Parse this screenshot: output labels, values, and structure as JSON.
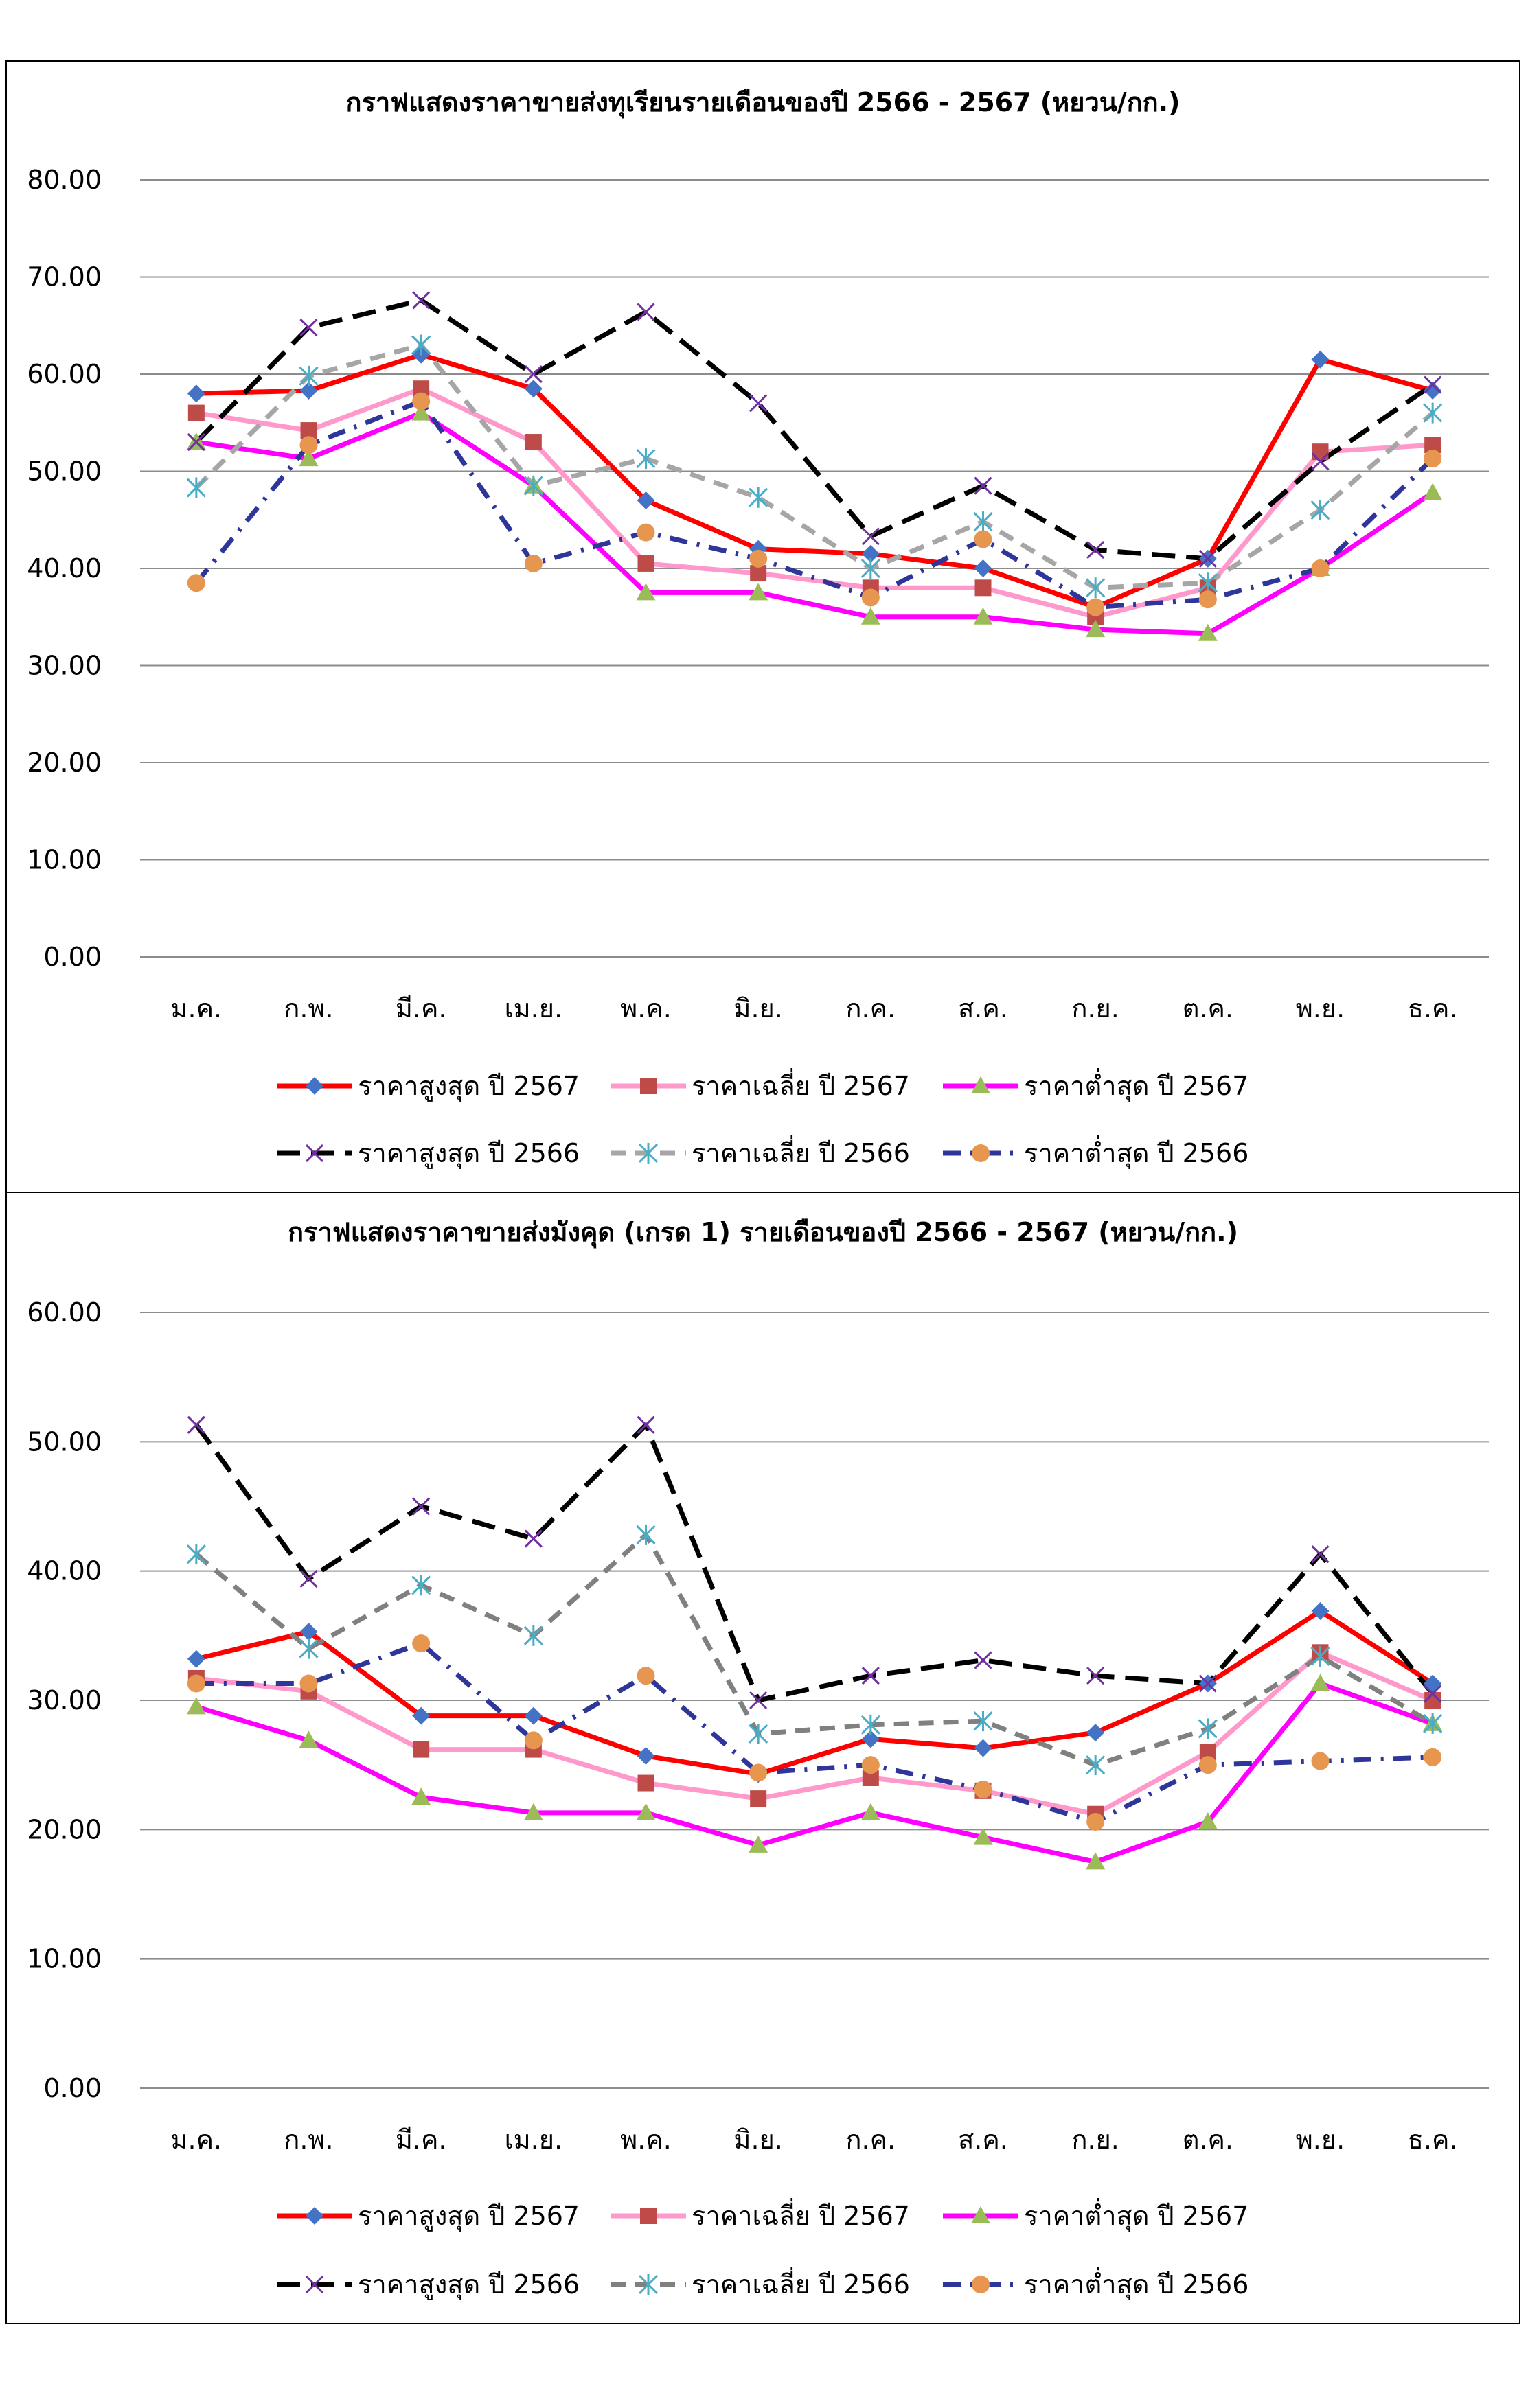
{
  "charts": [
    {
      "title": "กราฟแสดงราคาขายส่งทุเรียนรายเดือนของปี 2566 - 2567 (หยวน/กก.)",
      "type": "line",
      "categories": [
        "ม.ค.",
        "ก.พ.",
        "มี.ค.",
        "เม.ย.",
        "พ.ค.",
        "มิ.ย.",
        "ก.ค.",
        "ส.ค.",
        "ก.ย.",
        "ต.ค.",
        "พ.ย.",
        "ธ.ค."
      ],
      "y_ticks": [
        "0.00",
        "10.00",
        "20.00",
        "30.00",
        "40.00",
        "50.00",
        "60.00",
        "70.00",
        "80.00"
      ],
      "ylim": [
        0,
        80
      ],
      "grid": true,
      "legend_position": "bottom",
      "series": [
        {
          "name": "ราคาสูงสุด ปี 2567",
          "values": [
            58.0,
            58.3,
            62.0,
            58.5,
            47.0,
            42.0,
            41.5,
            40.0,
            36.0,
            41.0,
            61.5,
            58.3
          ],
          "color": "#ff0000",
          "marker": "diamond",
          "marker_color": "#4472c4",
          "dash": "solid"
        },
        {
          "name": "ราคาเฉลี่ย ปี 2567",
          "values": [
            56.0,
            54.2,
            58.5,
            53.0,
            40.5,
            39.5,
            38.0,
            38.0,
            35.0,
            38.0,
            52.0,
            52.7
          ],
          "color": "#ff99cc",
          "marker": "square",
          "marker_color": "#be4b48",
          "dash": "solid"
        },
        {
          "name": "ราคาต่ำสุด ปี 2567",
          "values": [
            53.0,
            51.3,
            56.0,
            48.5,
            37.5,
            37.5,
            35.0,
            35.0,
            33.7,
            33.3,
            40.0,
            47.8
          ],
          "color": "#ff00ff",
          "marker": "triangle",
          "marker_color": "#9bbb59",
          "dash": "solid"
        },
        {
          "name": "ราคาสูงสุด ปี 2566",
          "values": [
            53.0,
            64.8,
            67.6,
            60.0,
            66.4,
            57.0,
            43.3,
            48.5,
            41.9,
            41.0,
            51.0,
            58.9
          ],
          "color": "#000000",
          "marker": "x",
          "marker_color": "#7030a0",
          "dash": "longdash"
        },
        {
          "name": "ราคาเฉลี่ย ปี 2566",
          "values": [
            48.3,
            59.8,
            63.0,
            48.5,
            51.3,
            47.3,
            40.0,
            44.8,
            38.0,
            38.5,
            46.0,
            56.0
          ],
          "color": "#a6a6a6",
          "marker": "star",
          "marker_color": "#4bacc6",
          "dash": "dash"
        },
        {
          "name": "ราคาต่ำสุด ปี 2566",
          "values": [
            38.5,
            52.7,
            57.2,
            40.5,
            43.7,
            41.0,
            37.0,
            43.0,
            36.0,
            36.8,
            40.0,
            51.3
          ],
          "color": "#2f3699",
          "marker": "circle",
          "marker_color": "#e7964f",
          "dash": "dashdot"
        }
      ]
    },
    {
      "title": "กราฟแสดงราคาขายส่งมังคุด (เกรด 1) รายเดือนของปี 2566 - 2567 (หยวน/กก.)",
      "type": "line",
      "categories": [
        "ม.ค.",
        "ก.พ.",
        "มี.ค.",
        "เม.ย.",
        "พ.ค.",
        "มิ.ย.",
        "ก.ค.",
        "ส.ค.",
        "ก.ย.",
        "ต.ค.",
        "พ.ย.",
        "ธ.ค."
      ],
      "y_ticks": [
        "0.00",
        "10.00",
        "20.00",
        "30.00",
        "40.00",
        "50.00",
        "60.00"
      ],
      "ylim": [
        0,
        60
      ],
      "grid": true,
      "legend_position": "bottom",
      "series": [
        {
          "name": "ราคาสูงสุด ปี 2567",
          "values": [
            33.2,
            35.3,
            28.8,
            28.8,
            25.7,
            24.3,
            27.0,
            26.3,
            27.5,
            31.3,
            36.9,
            31.3
          ],
          "color": "#ff0000",
          "marker": "diamond",
          "marker_color": "#4472c4",
          "dash": "solid"
        },
        {
          "name": "ราคาเฉลี่ย ปี 2567",
          "values": [
            31.7,
            30.7,
            26.2,
            26.2,
            23.6,
            22.4,
            24.0,
            23.0,
            21.2,
            26.0,
            33.7,
            30.0
          ],
          "color": "#ff99cc",
          "marker": "square",
          "marker_color": "#be4b48",
          "dash": "solid"
        },
        {
          "name": "ราคาต่ำสุด ปี 2567",
          "values": [
            29.5,
            26.9,
            22.5,
            21.3,
            21.3,
            18.8,
            21.3,
            19.4,
            17.5,
            20.6,
            31.3,
            28.2
          ],
          "color": "#ff00ff",
          "marker": "triangle",
          "marker_color": "#9bbb59",
          "dash": "solid"
        },
        {
          "name": "ราคาสูงสุด ปี 2566",
          "values": [
            51.3,
            39.4,
            45.0,
            42.5,
            51.3,
            30.0,
            31.9,
            33.1,
            31.9,
            31.3,
            41.3,
            30.5
          ],
          "color": "#000000",
          "marker": "x",
          "marker_color": "#7030a0",
          "dash": "longdash"
        },
        {
          "name": "ราคาเฉลี่ย ปี 2566",
          "values": [
            41.3,
            34.0,
            38.9,
            35.0,
            42.8,
            27.4,
            28.1,
            28.4,
            25.0,
            27.8,
            33.4,
            28.2
          ],
          "color": "#808080",
          "marker": "star",
          "marker_color": "#4bacc6",
          "dash": "dash"
        },
        {
          "name": "ราคาต่ำสุด ปี 2566",
          "values": [
            31.3,
            31.3,
            34.4,
            26.9,
            31.9,
            24.4,
            25.0,
            23.1,
            20.6,
            25.0,
            25.3,
            25.6
          ],
          "color": "#2f3699",
          "marker": "circle",
          "marker_color": "#e7964f",
          "dash": "dashdot"
        }
      ]
    }
  ]
}
